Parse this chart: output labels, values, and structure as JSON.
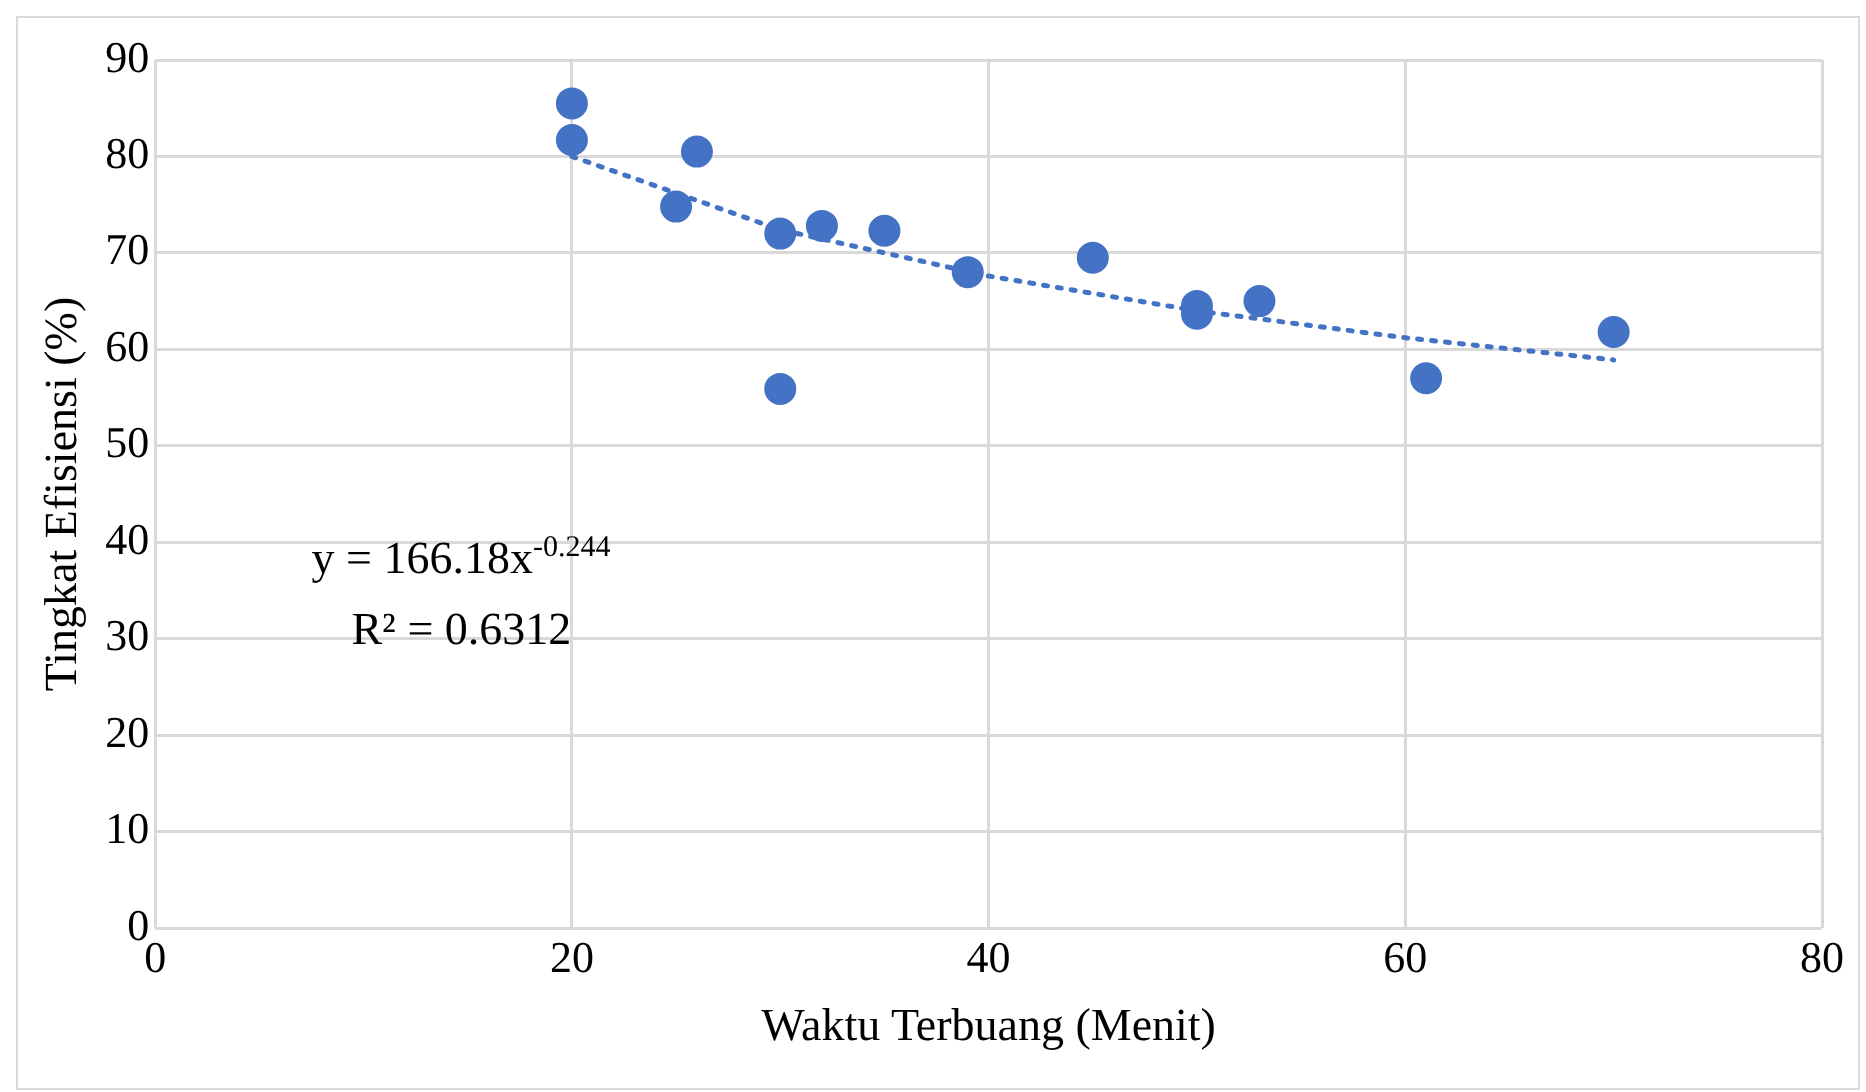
{
  "chart_data": {
    "type": "scatter",
    "xlabel": "Waktu Terbuang (Menit)",
    "ylabel": "Tingkat Efisiensi (%)",
    "xlim": [
      0,
      80
    ],
    "xticks": [
      0,
      20,
      40,
      60,
      80
    ],
    "ylim": [
      0,
      90
    ],
    "yticks": [
      0,
      10,
      20,
      30,
      40,
      50,
      60,
      70,
      80,
      90
    ],
    "grid": true,
    "legend": false,
    "marker": "circle",
    "annotations": [
      "y = 166.18x$^{-0.244}$",
      "R² = 0.6312"
    ],
    "series": [
      {
        "type": "scatter",
        "color": "#4472c4",
        "x": [
          20,
          20,
          25,
          26,
          30,
          30,
          32,
          35,
          39,
          45,
          50,
          50,
          53,
          61,
          70
        ],
        "values": [
          85.5,
          81.7,
          74.8,
          80.5,
          72,
          55.9,
          72.8,
          72.3,
          68,
          69.5,
          64.5,
          63.7,
          65,
          57,
          61.8
        ]
      },
      {
        "type": "line",
        "color": "#4472c4",
        "line_style": "dotted",
        "marker": "none",
        "x": [
          20,
          30,
          40,
          50,
          60,
          70
        ],
        "values": [
          80,
          72.4,
          67.6,
          64,
          61.2,
          58.9
        ]
      }
    ]
  }
}
